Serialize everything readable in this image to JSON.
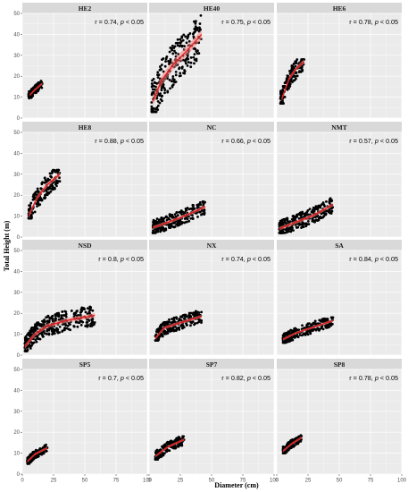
{
  "chart_data": {
    "type": "scatter",
    "xlabel": "Diameter (cm)",
    "ylabel": "Total Height (m)",
    "xlim": [
      0,
      100
    ],
    "ylim": [
      0,
      50
    ],
    "xticks": [
      "0",
      "25",
      "50",
      "75",
      "100"
    ],
    "yticks": [
      "0",
      "10",
      "20",
      "30",
      "40",
      "50"
    ],
    "grid": true,
    "colors": {
      "points": "#000000",
      "fit_line": "#e41a1c",
      "confidence_band": "#f08080",
      "panel_bg": "#ebebeb",
      "strip_bg": "#d9d9d9"
    },
    "panels": [
      {
        "name": "HE2",
        "r": "0.74",
        "p_text": "p",
        "p_rel": " < 0.05",
        "x_range": [
          5,
          16
        ],
        "y_range": [
          9,
          18
        ],
        "fit": [
          [
            6,
            11
          ],
          [
            10,
            13.5
          ],
          [
            16,
            16.5
          ]
        ]
      },
      {
        "name": "HE40",
        "r": "0.75",
        "p_text": "p",
        "p_rel": " < 0.05",
        "x_range": [
          2,
          42
        ],
        "y_range": [
          3,
          49
        ],
        "fit": [
          [
            3,
            8
          ],
          [
            10,
            18
          ],
          [
            20,
            26
          ],
          [
            30,
            32
          ],
          [
            42,
            40
          ]
        ]
      },
      {
        "name": "HE6",
        "r": "0.78",
        "p_text": "p",
        "p_rel": " < 0.05",
        "x_range": [
          3,
          22
        ],
        "y_range": [
          7,
          28
        ],
        "fit": [
          [
            4,
            9
          ],
          [
            10,
            19
          ],
          [
            16,
            24
          ],
          [
            22,
            27
          ]
        ]
      },
      {
        "name": "HE8",
        "r": "0.88",
        "p_text": "p",
        "p_rel": " < 0.05",
        "x_range": [
          5,
          30
        ],
        "y_range": [
          9,
          32
        ],
        "fit": [
          [
            5,
            10
          ],
          [
            12,
            19
          ],
          [
            20,
            25
          ],
          [
            30,
            30
          ]
        ]
      },
      {
        "name": "NC",
        "r": "0.66",
        "p_text": "p",
        "p_rel": " < 0.05",
        "x_range": [
          3,
          45
        ],
        "y_range": [
          2,
          18
        ],
        "fit": [
          [
            3,
            4.5
          ],
          [
            15,
            7
          ],
          [
            30,
            10.5
          ],
          [
            45,
            14.5
          ]
        ]
      },
      {
        "name": "NMT",
        "r": "0.57",
        "p_text": "p",
        "p_rel": " < 0.05",
        "x_range": [
          2,
          45
        ],
        "y_range": [
          2,
          19
        ],
        "fit": [
          [
            2,
            4
          ],
          [
            15,
            7
          ],
          [
            30,
            10.5
          ],
          [
            45,
            15.5
          ]
        ]
      },
      {
        "name": "NSD",
        "r": "0.8",
        "p_text": "p",
        "p_rel": " < 0.05",
        "x_range": [
          2,
          58
        ],
        "y_range": [
          2,
          24
        ],
        "fit": [
          [
            2,
            4
          ],
          [
            10,
            10
          ],
          [
            20,
            14
          ],
          [
            35,
            16.5
          ],
          [
            58,
            19
          ]
        ]
      },
      {
        "name": "NX",
        "r": "0.74",
        "p_text": "p",
        "p_rel": " < 0.05",
        "x_range": [
          5,
          42
        ],
        "y_range": [
          7,
          22
        ],
        "fit": [
          [
            5,
            8
          ],
          [
            12,
            13
          ],
          [
            25,
            15.5
          ],
          [
            42,
            18.5
          ]
        ]
      },
      {
        "name": "SA",
        "r": "0.84",
        "p_text": "p",
        "p_rel": " < 0.05",
        "x_range": [
          5,
          45
        ],
        "y_range": [
          6,
          18
        ],
        "fit": [
          [
            5,
            7.5
          ],
          [
            15,
            10.5
          ],
          [
            30,
            13.5
          ],
          [
            45,
            16.5
          ]
        ]
      },
      {
        "name": "SP5",
        "r": "0.7",
        "p_text": "p",
        "p_rel": " < 0.05",
        "x_range": [
          4,
          20
        ],
        "y_range": [
          5,
          14
        ],
        "fit": [
          [
            4,
            6
          ],
          [
            10,
            9.5
          ],
          [
            20,
            12.5
          ]
        ]
      },
      {
        "name": "SP7",
        "r": "0.82",
        "p_text": "p",
        "p_rel": " < 0.05",
        "x_range": [
          5,
          28
        ],
        "y_range": [
          7,
          18
        ],
        "fit": [
          [
            5,
            8.5
          ],
          [
            15,
            13
          ],
          [
            28,
            16.5
          ]
        ]
      },
      {
        "name": "SP8",
        "r": "0.78",
        "p_text": "p",
        "p_rel": " < 0.05",
        "x_range": [
          5,
          20
        ],
        "y_range": [
          10,
          19
        ],
        "fit": [
          [
            5,
            11
          ],
          [
            12,
            14.5
          ],
          [
            20,
            17.5
          ]
        ]
      }
    ]
  }
}
